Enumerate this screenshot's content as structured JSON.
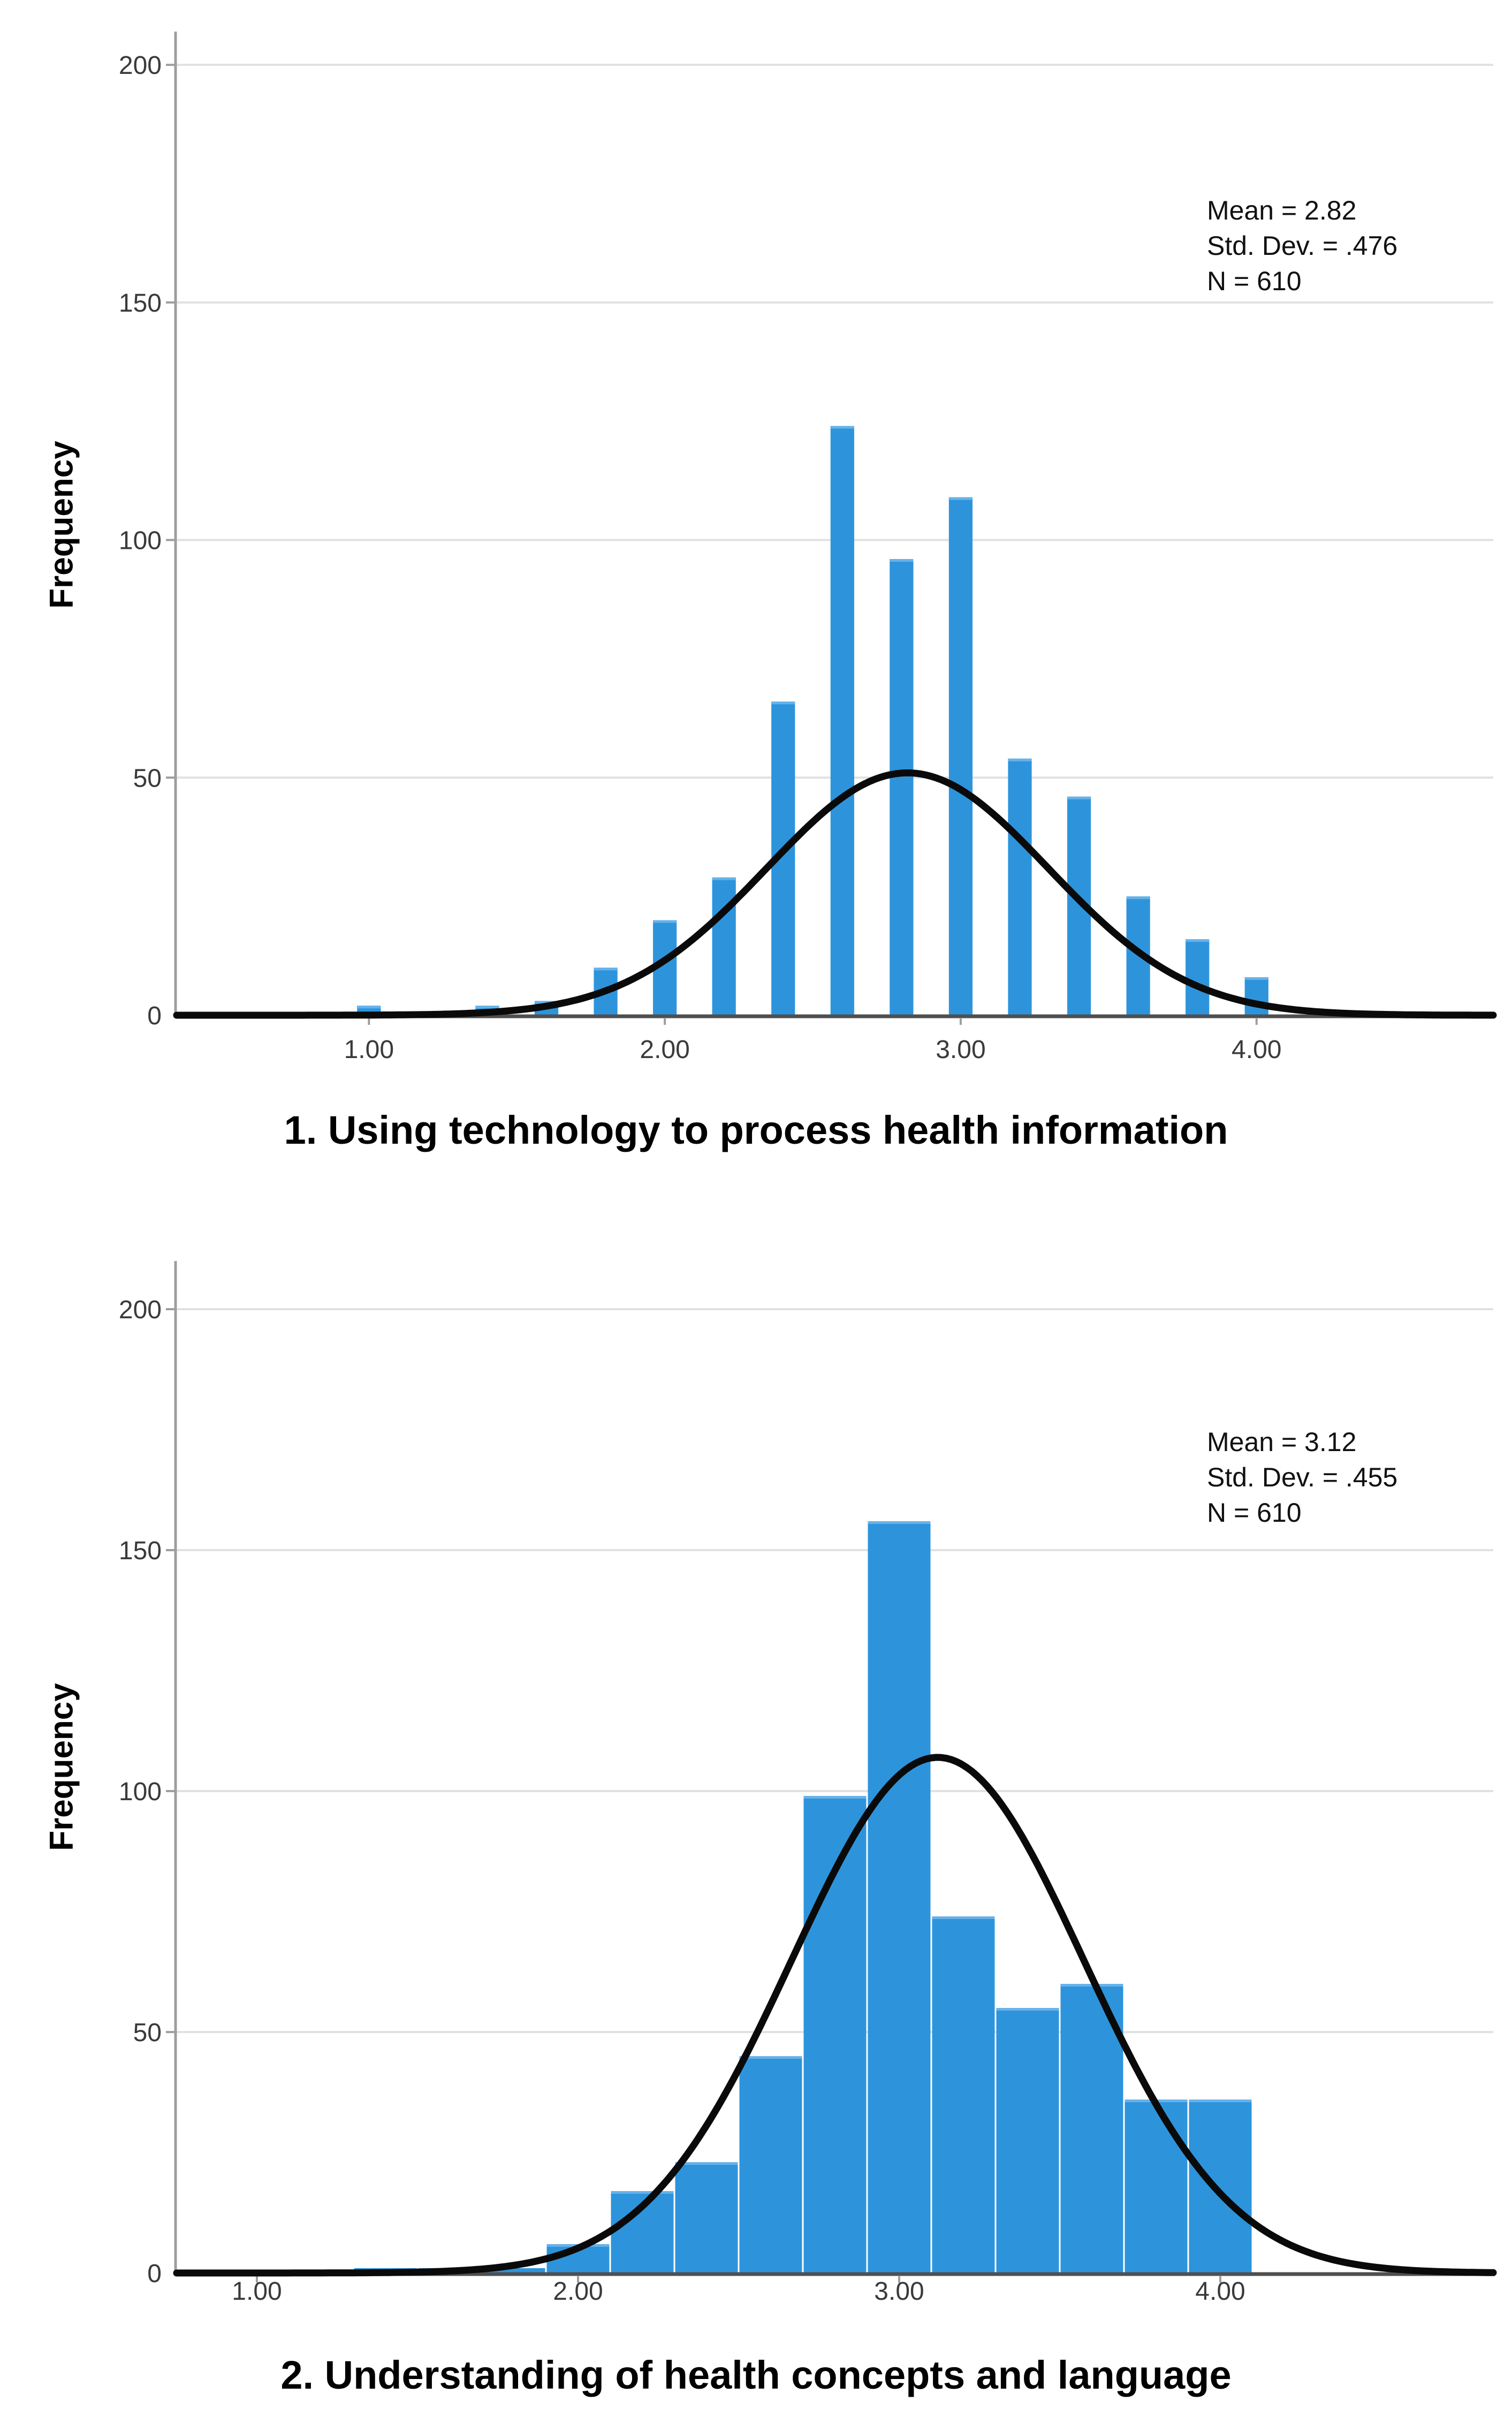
{
  "page": {
    "background": "#ffffff"
  },
  "chart_data": [
    {
      "type": "bar",
      "subtype": "histogram-with-normal-curve",
      "title": "1. Using technology to process health information",
      "xlabel": "",
      "ylabel": "Frequency",
      "annotation": {
        "mean": "Mean = 2.82",
        "std_dev": "Std. Dev. = .476",
        "n": "N = 610"
      },
      "bar_style": "separated",
      "bar_width_units": 0.08,
      "bin_centers": [
        1.0,
        1.4,
        1.6,
        1.8,
        2.0,
        2.2,
        2.4,
        2.6,
        2.8,
        3.0,
        3.2,
        3.4,
        3.6,
        3.8,
        4.0
      ],
      "frequencies": [
        2,
        2,
        3,
        10,
        20,
        29,
        66,
        124,
        96,
        109,
        54,
        46,
        25,
        16,
        8
      ],
      "total_n": 610,
      "normal_curve": {
        "mean": 2.82,
        "sd": 0.476,
        "peak_height": 51
      },
      "xlim": [
        0.35,
        4.8
      ],
      "ylim": [
        0,
        207
      ],
      "xticks": [
        1.0,
        2.0,
        3.0,
        4.0
      ],
      "xtick_labels": [
        "1.00",
        "2.00",
        "3.00",
        "4.00"
      ],
      "yticks": [
        0,
        50,
        100,
        150,
        200
      ],
      "ytick_labels": [
        "0",
        "50",
        "100",
        "150",
        "200"
      ],
      "grid": "horizontal-light",
      "legend": "none",
      "colors": {
        "bar": "#2D94DC",
        "bar_highlight": "#66B2EA",
        "curve": "#0A0A0A",
        "grid": "#E1E1E1",
        "y_axis": "#9E9E9E",
        "x_axis": "#4F4F4F",
        "tick_text": "#3A3A3A"
      }
    },
    {
      "type": "bar",
      "subtype": "histogram-with-normal-curve",
      "title": "2. Understanding of health concepts and language",
      "xlabel": "",
      "ylabel": "Frequency",
      "annotation": {
        "mean": "Mean = 3.12",
        "std_dev": "Std. Dev. = .455",
        "n": "N = 610"
      },
      "bar_style": "contiguous",
      "bar_width_units": 0.2,
      "bin_centers": [
        1.4,
        1.6,
        1.8,
        2.0,
        2.2,
        2.4,
        2.6,
        2.8,
        3.0,
        3.2,
        3.4,
        3.6,
        3.8,
        4.0
      ],
      "frequencies": [
        1,
        1,
        1,
        6,
        17,
        23,
        45,
        99,
        156,
        74,
        55,
        60,
        36,
        36
      ],
      "total_n": 610,
      "normal_curve": {
        "mean": 3.12,
        "sd": 0.455,
        "peak_height": 107
      },
      "xlim": [
        0.75,
        4.85
      ],
      "ylim": [
        0,
        210
      ],
      "xticks": [
        1.0,
        2.0,
        3.0,
        4.0
      ],
      "xtick_labels": [
        "1.00",
        "2.00",
        "3.00",
        "4.00"
      ],
      "yticks": [
        0,
        50,
        100,
        150,
        200
      ],
      "ytick_labels": [
        "0",
        "50",
        "100",
        "150",
        "200"
      ],
      "grid": "horizontal-light",
      "legend": "none",
      "colors": {
        "bar": "#2D94DC",
        "bar_highlight": "#66B2EA",
        "curve": "#0A0A0A",
        "grid": "#E1E1E1",
        "y_axis": "#9E9E9E",
        "x_axis": "#4F4F4F",
        "tick_text": "#3A3A3A"
      }
    }
  ]
}
